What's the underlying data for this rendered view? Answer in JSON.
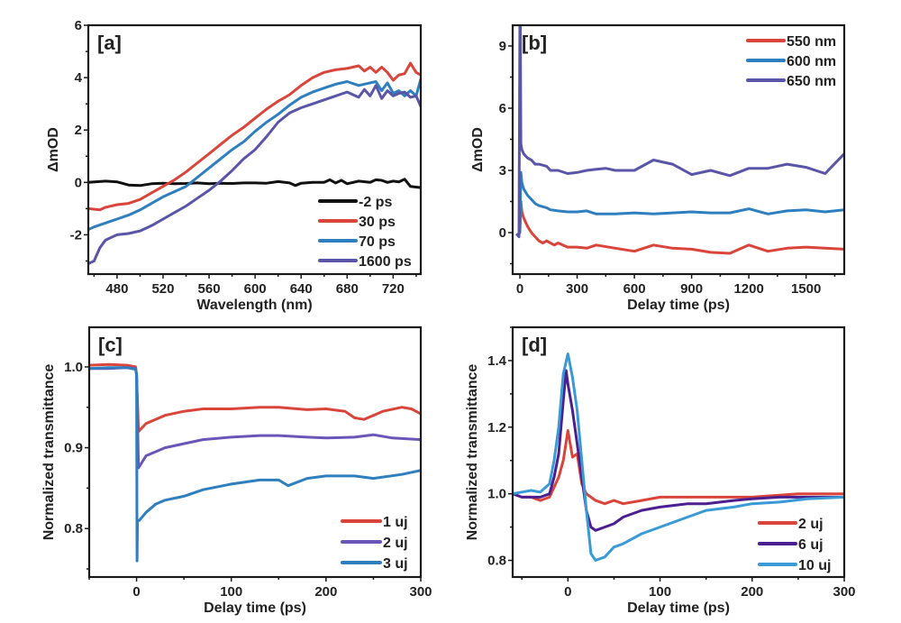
{
  "chart_data": [
    {
      "id": "a",
      "type": "line",
      "panel_label": "[a]",
      "title": "",
      "xlabel": "Wavelength (nm)",
      "ylabel": "ΔmOD",
      "xlim": [
        455,
        744
      ],
      "ylim": [
        -3.5,
        6
      ],
      "xticks": [
        480,
        520,
        560,
        600,
        640,
        680,
        720
      ],
      "xtick_labels": [
        "480",
        "520",
        "560",
        "600",
        "640",
        "680",
        "720"
      ],
      "yticks": [
        -2,
        0,
        2,
        4,
        6
      ],
      "ytick_labels": [
        "-2",
        "0",
        "2",
        "4",
        "6"
      ],
      "legend_position": "bottom-right",
      "series": [
        {
          "name": "-2 ps",
          "color": "#111111",
          "x": [
            455,
            470,
            480,
            490,
            500,
            510,
            520,
            530,
            540,
            550,
            560,
            570,
            580,
            590,
            600,
            610,
            620,
            630,
            635,
            640,
            650,
            660,
            665,
            670,
            675,
            680,
            690,
            700,
            705,
            710,
            715,
            720,
            725,
            730,
            735,
            744
          ],
          "y": [
            0,
            0.05,
            0.02,
            -0.1,
            -0.12,
            -0.05,
            -0.03,
            -0.05,
            -0.04,
            -0.02,
            -0.05,
            -0.03,
            -0.04,
            -0.02,
            -0.02,
            -0.03,
            0.03,
            -0.02,
            -0.12,
            -0.03,
            0,
            0,
            0.1,
            -0.02,
            0.08,
            -0.05,
            0.05,
            0,
            0.1,
            0.08,
            0,
            0.05,
            0.02,
            0.12,
            -0.15,
            -0.2
          ]
        },
        {
          "name": "30 ps",
          "color": "#d9453a",
          "x": [
            455,
            465,
            470,
            480,
            490,
            500,
            510,
            520,
            530,
            540,
            550,
            560,
            570,
            580,
            590,
            600,
            610,
            620,
            630,
            640,
            650,
            660,
            670,
            680,
            690,
            695,
            700,
            705,
            710,
            715,
            720,
            725,
            730,
            735,
            740,
            744
          ],
          "y": [
            -1.0,
            -1.05,
            -0.95,
            -0.85,
            -0.8,
            -0.65,
            -0.4,
            -0.15,
            0.1,
            0.4,
            0.75,
            1.1,
            1.45,
            1.8,
            2.1,
            2.45,
            2.8,
            3.1,
            3.35,
            3.7,
            4.0,
            4.2,
            4.3,
            4.35,
            4.45,
            4.25,
            4.4,
            4.2,
            4.4,
            4.2,
            3.9,
            4.1,
            4.15,
            4.55,
            4.2,
            4.1
          ]
        },
        {
          "name": "70 ps",
          "color": "#2f7fbf",
          "x": [
            455,
            460,
            470,
            480,
            490,
            500,
            510,
            520,
            530,
            540,
            550,
            560,
            570,
            580,
            590,
            600,
            610,
            620,
            630,
            640,
            650,
            660,
            670,
            680,
            690,
            700,
            705,
            710,
            715,
            720,
            725,
            730,
            735,
            740,
            744
          ],
          "y": [
            -1.8,
            -1.7,
            -1.55,
            -1.4,
            -1.25,
            -1.05,
            -0.8,
            -0.55,
            -0.35,
            -0.15,
            0.2,
            0.55,
            0.9,
            1.25,
            1.55,
            1.95,
            2.3,
            2.6,
            2.95,
            3.25,
            3.45,
            3.6,
            3.75,
            3.85,
            3.7,
            3.8,
            3.85,
            3.5,
            3.8,
            3.4,
            3.5,
            3.3,
            3.5,
            3.3,
            3.95
          ]
        },
        {
          "name": "1600 ps",
          "color": "#5b55a8",
          "x": [
            455,
            460,
            465,
            470,
            480,
            490,
            500,
            510,
            520,
            530,
            540,
            550,
            560,
            570,
            580,
            590,
            600,
            610,
            620,
            630,
            640,
            650,
            660,
            670,
            680,
            690,
            695,
            700,
            705,
            710,
            715,
            720,
            725,
            730,
            735,
            740,
            744
          ],
          "y": [
            -3.1,
            -3.0,
            -2.5,
            -2.2,
            -2.0,
            -1.95,
            -1.85,
            -1.65,
            -1.4,
            -1.15,
            -0.9,
            -0.6,
            -0.3,
            0.05,
            0.45,
            0.9,
            1.25,
            1.75,
            2.3,
            2.65,
            2.85,
            3.0,
            3.15,
            3.3,
            3.45,
            3.25,
            3.55,
            3.3,
            3.7,
            3.2,
            3.5,
            3.3,
            3.4,
            3.45,
            3.25,
            3.3,
            2.9
          ]
        }
      ]
    },
    {
      "id": "b",
      "type": "line",
      "panel_label": "[b]",
      "title": "",
      "xlabel": "Delay time (ps)",
      "ylabel": "ΔmOD",
      "xlim": [
        -38,
        1700
      ],
      "ylim": [
        -2,
        10
      ],
      "xticks": [
        0,
        300,
        600,
        900,
        1200,
        1500
      ],
      "xtick_labels": [
        "0",
        "300",
        "600",
        "900",
        "1200",
        "1500"
      ],
      "yticks": [
        0,
        3,
        6,
        9
      ],
      "ytick_labels": [
        "0",
        "3",
        "6",
        "9"
      ],
      "legend_position": "top-right",
      "series": [
        {
          "name": "550 nm",
          "color": "#d9453a",
          "x": [
            -10,
            0,
            5,
            10,
            20,
            40,
            60,
            80,
            100,
            120,
            140,
            160,
            180,
            200,
            250,
            300,
            350,
            400,
            500,
            600,
            700,
            800,
            900,
            1000,
            1100,
            1200,
            1300,
            1400,
            1500,
            1600,
            1700
          ],
          "y": [
            -0.1,
            0,
            1.5,
            1.0,
            0.7,
            0.3,
            0.0,
            -0.2,
            -0.4,
            -0.5,
            -0.4,
            -0.5,
            -0.6,
            -0.5,
            -0.7,
            -0.7,
            -0.75,
            -0.6,
            -0.75,
            -0.9,
            -0.6,
            -0.75,
            -0.8,
            -0.95,
            -1.0,
            -0.6,
            -0.9,
            -0.75,
            -0.7,
            -0.75,
            -0.8
          ]
        },
        {
          "name": "600 nm",
          "color": "#2f7fbf",
          "x": [
            -10,
            0,
            5,
            10,
            20,
            40,
            60,
            80,
            100,
            140,
            160,
            200,
            250,
            300,
            350,
            400,
            500,
            600,
            700,
            800,
            900,
            1000,
            1100,
            1200,
            1300,
            1400,
            1500,
            1600,
            1700
          ],
          "y": [
            -0.1,
            0,
            2.9,
            2.4,
            2.1,
            1.8,
            1.6,
            1.4,
            1.3,
            1.2,
            1.1,
            1.05,
            1.0,
            1.0,
            1.05,
            0.9,
            0.9,
            0.95,
            0.9,
            0.95,
            1.0,
            0.95,
            0.95,
            1.15,
            0.9,
            1.05,
            1.1,
            1.0,
            1.1
          ]
        },
        {
          "name": "650 nm",
          "color": "#5b55a8",
          "x": [
            -15,
            -5,
            0,
            2,
            5,
            10,
            20,
            40,
            60,
            80,
            100,
            140,
            160,
            200,
            250,
            300,
            350,
            400,
            450,
            500,
            600,
            700,
            800,
            900,
            1000,
            1100,
            1200,
            1300,
            1400,
            1500,
            1600,
            1700
          ],
          "y": [
            -0.1,
            -0.2,
            10.2,
            10.2,
            4.3,
            4.0,
            3.8,
            3.6,
            3.5,
            3.3,
            3.3,
            3.2,
            3.0,
            3.0,
            2.85,
            2.9,
            3.0,
            3.05,
            3.1,
            3.0,
            3.0,
            3.5,
            3.3,
            2.8,
            3.0,
            2.75,
            3.1,
            3.1,
            3.3,
            3.15,
            2.85,
            3.8
          ]
        }
      ]
    },
    {
      "id": "c",
      "type": "line",
      "panel_label": "[c]",
      "title": "",
      "xlabel": "Delay time (ps)",
      "ylabel": "Normalized transmittance",
      "xlim": [
        -50,
        300
      ],
      "ylim": [
        0.74,
        1.049
      ],
      "xticks": [
        0,
        100,
        200,
        300
      ],
      "xtick_labels": [
        "0",
        "100",
        "200",
        "300"
      ],
      "yticks": [
        0.8,
        0.9,
        1.0
      ],
      "ytick_labels": [
        "0.8",
        "0.9",
        "1.0"
      ],
      "legend_position": "bottom-right",
      "series": [
        {
          "name": "1 uj",
          "color": "#d9453a",
          "x": [
            -50,
            -30,
            -10,
            -1,
            0,
            2,
            10,
            20,
            30,
            50,
            70,
            100,
            130,
            150,
            180,
            200,
            220,
            230,
            240,
            260,
            280,
            290,
            300
          ],
          "y": [
            1.002,
            1.003,
            1.002,
            1.0,
            0.99,
            0.92,
            0.93,
            0.935,
            0.94,
            0.945,
            0.948,
            0.948,
            0.95,
            0.95,
            0.947,
            0.948,
            0.945,
            0.937,
            0.935,
            0.945,
            0.95,
            0.948,
            0.942
          ]
        },
        {
          "name": "2 uj",
          "color": "#6a56b8",
          "x": [
            -50,
            -30,
            -10,
            -1,
            0,
            2,
            10,
            20,
            30,
            50,
            70,
            100,
            130,
            150,
            180,
            200,
            230,
            250,
            270,
            300
          ],
          "y": [
            0.998,
            0.998,
            0.999,
            0.998,
            0.99,
            0.875,
            0.89,
            0.895,
            0.9,
            0.905,
            0.91,
            0.913,
            0.915,
            0.915,
            0.913,
            0.912,
            0.913,
            0.916,
            0.912,
            0.91
          ]
        },
        {
          "name": "3 uj",
          "color": "#2f7fbf",
          "x": [
            -50,
            -30,
            -10,
            -1,
            0,
            0.5,
            1,
            3,
            10,
            20,
            30,
            50,
            70,
            100,
            130,
            150,
            160,
            180,
            200,
            230,
            250,
            280,
            300
          ],
          "y": [
            0.998,
            0.999,
            0.999,
            0.997,
            0.99,
            0.76,
            0.81,
            0.81,
            0.82,
            0.83,
            0.835,
            0.84,
            0.848,
            0.855,
            0.86,
            0.86,
            0.853,
            0.862,
            0.865,
            0.865,
            0.862,
            0.867,
            0.872
          ]
        }
      ]
    },
    {
      "id": "d",
      "type": "line",
      "panel_label": "[d]",
      "title": "",
      "xlabel": "Delay time (ps)",
      "ylabel": "Normalized transmittance",
      "xlim": [
        -60,
        300
      ],
      "ylim": [
        0.75,
        1.5
      ],
      "xticks": [
        0,
        100,
        200,
        300
      ],
      "xtick_labels": [
        "0",
        "100",
        "200",
        "300"
      ],
      "yticks": [
        0.8,
        1.0,
        1.2,
        1.4
      ],
      "ytick_labels": [
        "0.8",
        "1.0",
        "1.2",
        "1.4"
      ],
      "legend_position": "bottom-right",
      "series": [
        {
          "name": "2 uj",
          "color": "#d9453a",
          "x": [
            -60,
            -50,
            -40,
            -30,
            -20,
            -10,
            -5,
            0,
            5,
            10,
            15,
            20,
            30,
            40,
            50,
            60,
            80,
            100,
            150,
            200,
            250,
            300
          ],
          "y": [
            1.0,
            0.99,
            0.99,
            0.98,
            0.99,
            1.05,
            1.1,
            1.19,
            1.11,
            1.12,
            1.03,
            1.0,
            0.98,
            0.97,
            0.98,
            0.97,
            0.98,
            0.99,
            0.99,
            0.99,
            1.0,
            1.0
          ]
        },
        {
          "name": "6 uj",
          "color": "#4b1f90",
          "x": [
            -60,
            -50,
            -40,
            -30,
            -20,
            -15,
            -10,
            -5,
            -2,
            0,
            5,
            10,
            15,
            20,
            25,
            30,
            40,
            50,
            60,
            80,
            100,
            130,
            150,
            180,
            200,
            230,
            260,
            300
          ],
          "y": [
            1.0,
            0.99,
            0.99,
            0.99,
            1.0,
            1.05,
            1.12,
            1.28,
            1.37,
            1.33,
            1.25,
            1.15,
            1.05,
            0.95,
            0.9,
            0.89,
            0.9,
            0.91,
            0.93,
            0.95,
            0.96,
            0.97,
            0.97,
            0.98,
            0.985,
            0.99,
            0.99,
            0.99
          ]
        },
        {
          "name": "10 uj",
          "color": "#3a9ad6",
          "x": [
            -60,
            -50,
            -40,
            -30,
            -20,
            -15,
            -10,
            -5,
            0,
            5,
            10,
            15,
            20,
            25,
            30,
            40,
            50,
            60,
            80,
            100,
            130,
            150,
            180,
            200,
            230,
            260,
            300
          ],
          "y": [
            1.0,
            1.005,
            1.01,
            1.005,
            1.03,
            1.1,
            1.2,
            1.36,
            1.42,
            1.35,
            1.25,
            1.1,
            0.95,
            0.82,
            0.8,
            0.81,
            0.84,
            0.85,
            0.88,
            0.9,
            0.93,
            0.95,
            0.96,
            0.97,
            0.975,
            0.985,
            0.99
          ]
        }
      ]
    }
  ]
}
